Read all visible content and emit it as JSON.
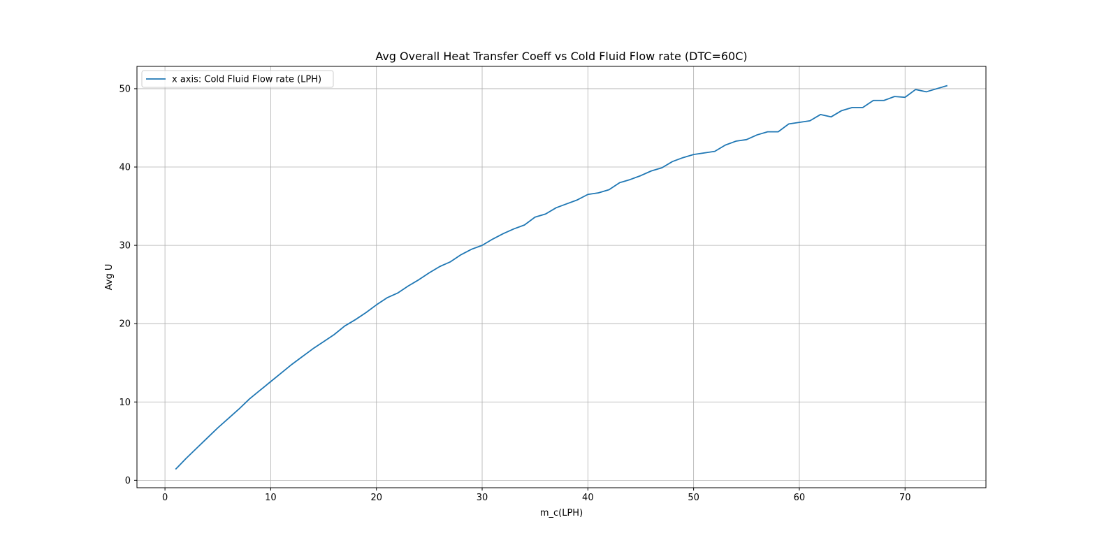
{
  "chart_data": {
    "type": "line",
    "title": "Avg Overall Heat Transfer Coeff vs Cold Fluid Flow rate (DTC=60C)",
    "xlabel": "m_c(LPH)",
    "ylabel": "Avg U",
    "xlim": [
      -2.65,
      77.65
    ],
    "ylim": [
      -0.95,
      52.85
    ],
    "xticks": [
      0,
      10,
      20,
      30,
      40,
      50,
      60,
      70
    ],
    "yticks": [
      0,
      10,
      20,
      30,
      40,
      50
    ],
    "grid": true,
    "legend_position": "top-left",
    "series": [
      {
        "name": "x axis: Cold Fluid Flow rate (LPH)",
        "color": "#1f77b4",
        "x": [
          1,
          2,
          3,
          4,
          5,
          6,
          7,
          8,
          9,
          10,
          11,
          12,
          13,
          14,
          15,
          16,
          17,
          18,
          19,
          20,
          21,
          22,
          23,
          24,
          25,
          26,
          27,
          28,
          29,
          30,
          31,
          32,
          33,
          34,
          35,
          36,
          37,
          38,
          39,
          40,
          41,
          42,
          43,
          44,
          45,
          46,
          47,
          48,
          49,
          50,
          51,
          52,
          53,
          54,
          55,
          56,
          57,
          58,
          59,
          60,
          61,
          62,
          63,
          64,
          65,
          66,
          67,
          68,
          69,
          70,
          71,
          72,
          73,
          74
        ],
        "y": [
          1.4,
          2.8,
          4.1,
          5.4,
          6.7,
          7.9,
          9.1,
          10.4,
          11.5,
          12.6,
          13.7,
          14.8,
          15.8,
          16.8,
          17.7,
          18.6,
          19.7,
          20.5,
          21.4,
          22.4,
          23.3,
          23.9,
          24.8,
          25.6,
          26.5,
          27.3,
          27.9,
          28.8,
          29.5,
          30.0,
          30.8,
          31.5,
          32.1,
          32.6,
          33.6,
          34.0,
          34.8,
          35.3,
          35.8,
          36.5,
          36.7,
          37.1,
          38.0,
          38.4,
          38.9,
          39.5,
          39.9,
          40.7,
          41.2,
          41.6,
          41.8,
          42.0,
          42.8,
          43.3,
          43.5,
          44.1,
          44.5,
          44.5,
          45.5,
          45.7,
          45.9,
          46.7,
          46.4,
          47.2,
          47.6,
          47.6,
          48.5,
          48.5,
          49.0,
          48.9,
          49.9,
          49.6,
          50.0,
          50.4
        ]
      }
    ]
  }
}
